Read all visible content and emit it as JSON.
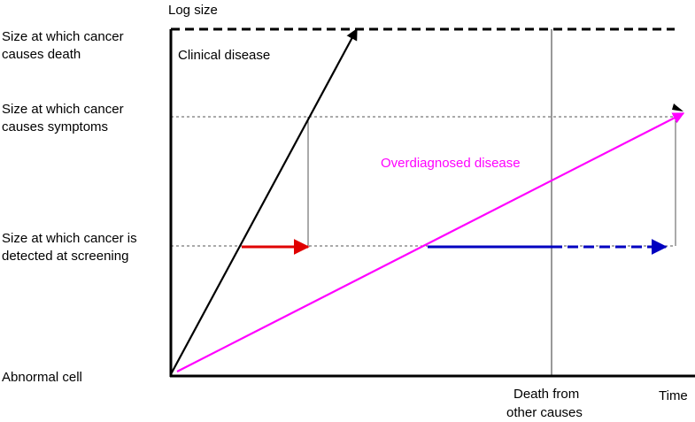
{
  "axis": {
    "y_title": "Log size",
    "x_title": "Time"
  },
  "levels": {
    "death": [
      "Size at which cancer",
      "causes death"
    ],
    "symptoms": [
      "Size at which cancer",
      "causes symptoms"
    ],
    "screening": [
      "Size at which cancer is",
      "detected at screening"
    ],
    "origin": "Abnormal cell"
  },
  "regions": {
    "clinical": "Clinical disease",
    "overdiagnosed": "Overdiagnosed disease"
  },
  "events": {
    "other_death": [
      "Death from",
      "other causes"
    ]
  },
  "colors": {
    "axis": "#000000",
    "clinical_line": "#000000",
    "overdiagnosed_line": "#ff00ff",
    "lead_time_arrow": "#e00000",
    "sojourn_arrow": "#0000c0",
    "guide_lines": "#555555"
  }
}
